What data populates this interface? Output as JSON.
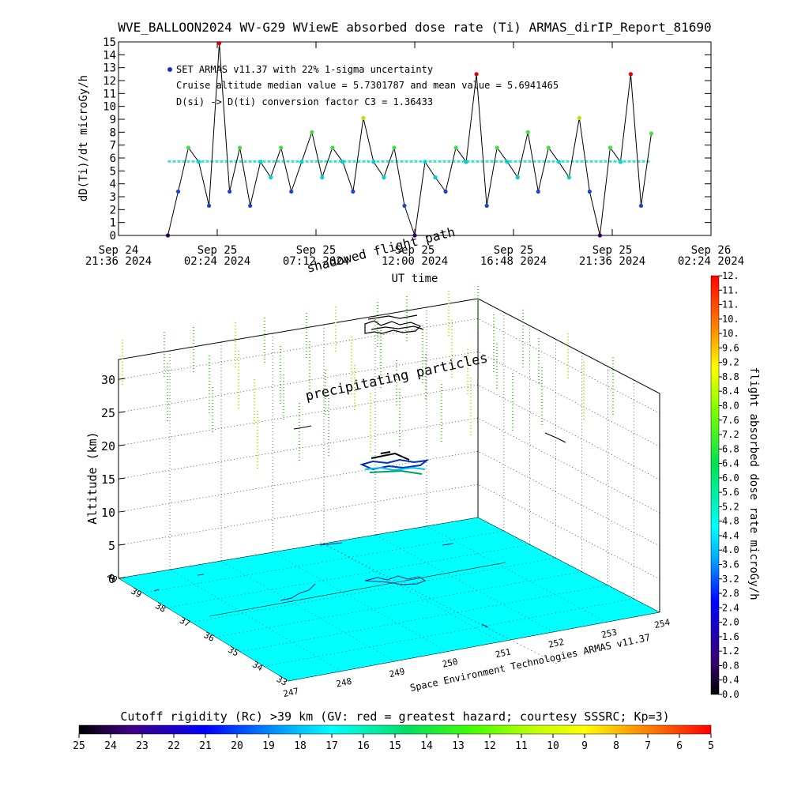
{
  "title": "WVE_BALLOON2024 WV-G29 WViewE absorbed dose rate (Ti) ARMAS_dirIP_Report_81690",
  "credit": "Space Environment Technologies ARMAS v11.37",
  "annotations": {
    "shadowed_flight_path": "shadowed flight path",
    "precipitating_particles": "precipitating particles"
  },
  "top_chart": {
    "ylabel": "dD(Ti)/dt microGy/h",
    "xlabel": "UT time",
    "legend": {
      "line1": "SET ARMAS v11.37 with 22% 1-sigma uncertainty",
      "line2": "Cruise altitude median value = 5.7301787 and mean value = 5.6941465",
      "line3": "D(si) -> D(ti) conversion factor C3 = 1.36433"
    },
    "yticks": [
      "0",
      "1",
      "2",
      "3",
      "4",
      "5",
      "6",
      "7",
      "8",
      "9",
      "10",
      "11",
      "12",
      "13",
      "14",
      "15"
    ],
    "xticks": [
      {
        "top": "Sep 24",
        "bottom": "21:36 2024"
      },
      {
        "top": "Sep 25",
        "bottom": "02:24 2024"
      },
      {
        "top": "Sep 25",
        "bottom": "07:12 2024"
      },
      {
        "top": "Sep 25",
        "bottom": "12:00 2024"
      },
      {
        "top": "Sep 25",
        "bottom": "16:48 2024"
      },
      {
        "top": "Sep 25",
        "bottom": "21:36 2024"
      },
      {
        "top": "Sep 26",
        "bottom": "02:24 2024"
      }
    ]
  },
  "chart_data": [
    {
      "type": "line",
      "title": "WVE_BALLOON2024 WV-G29 WViewE absorbed dose rate (Ti) ARMAS_dirIP_Report_81690",
      "xlabel": "UT time",
      "ylabel": "dD(Ti)/dt microGy/h",
      "xlim": [
        "2024-09-24 21:36",
        "2024-09-26 02:24"
      ],
      "ylim": [
        0,
        15
      ],
      "series": [
        {
          "name": "SET ARMAS v11.37 with 22% 1-sigma uncertainty",
          "x": [
            "2024-09-25 00:00",
            "2024-09-25 00:30",
            "2024-09-25 01:00",
            "2024-09-25 01:30",
            "2024-09-25 02:00",
            "2024-09-25 02:30",
            "2024-09-25 03:00",
            "2024-09-25 03:30",
            "2024-09-25 04:00",
            "2024-09-25 04:30",
            "2024-09-25 05:00",
            "2024-09-25 05:30",
            "2024-09-25 06:00",
            "2024-09-25 06:30",
            "2024-09-25 07:00",
            "2024-09-25 07:30",
            "2024-09-25 08:00",
            "2024-09-25 08:30",
            "2024-09-25 09:00",
            "2024-09-25 09:30",
            "2024-09-25 10:00",
            "2024-09-25 10:30",
            "2024-09-25 11:00",
            "2024-09-25 11:30",
            "2024-09-25 12:00",
            "2024-09-25 12:30",
            "2024-09-25 13:00",
            "2024-09-25 13:30",
            "2024-09-25 14:00",
            "2024-09-25 14:30",
            "2024-09-25 15:00",
            "2024-09-25 15:30",
            "2024-09-25 16:00",
            "2024-09-25 16:30",
            "2024-09-25 17:00",
            "2024-09-25 17:30",
            "2024-09-25 18:00",
            "2024-09-25 18:30",
            "2024-09-25 19:00",
            "2024-09-25 19:30",
            "2024-09-25 20:00",
            "2024-09-25 20:30",
            "2024-09-25 21:00",
            "2024-09-25 21:30",
            "2024-09-25 22:00",
            "2024-09-25 22:30",
            "2024-09-25 23:00",
            "2024-09-25 23:30"
          ],
          "values": [
            0,
            3.4,
            6.8,
            5.7,
            2.3,
            14.9,
            3.4,
            6.8,
            2.3,
            5.7,
            4.5,
            6.8,
            3.4,
            5.7,
            8.0,
            4.5,
            6.8,
            5.7,
            3.4,
            9.1,
            5.7,
            4.5,
            6.8,
            2.3,
            0,
            5.7,
            4.5,
            3.4,
            6.8,
            5.7,
            12.5,
            2.3,
            6.8,
            5.7,
            4.5,
            8.0,
            3.4,
            6.8,
            5.7,
            4.5,
            9.1,
            3.4,
            0,
            6.8,
            5.7,
            12.5,
            2.3,
            7.9
          ]
        },
        {
          "name": "Cruise altitude median value = 5.7301787 and mean value = 5.6941465",
          "values": [
            5.73
          ]
        }
      ]
    },
    {
      "type": "scatter",
      "xlabel": "",
      "ylabel": "Altitude (km)",
      "zlim": [
        0,
        33
      ],
      "longitude_ticks": [
        "247",
        "248",
        "249",
        "250",
        "251",
        "252",
        "253",
        "254"
      ],
      "latitude_ticks": [
        "33",
        "34",
        "35",
        "36",
        "37",
        "38",
        "39",
        "40"
      ],
      "altitude_ticks": [
        "0",
        "5",
        "10",
        "15",
        "20",
        "25",
        "30"
      ]
    }
  ],
  "dose_colorbar": {
    "label": "flight absorbed dose rate microGy/h",
    "ticks": [
      "0.0",
      "0.4",
      "0.8",
      "1.2",
      "1.6",
      "2.0",
      "2.4",
      "2.8",
      "3.2",
      "3.6",
      "4.0",
      "4.4",
      "4.8",
      "5.2",
      "5.6",
      "6.0",
      "6.4",
      "6.8",
      "7.2",
      "7.6",
      "8.0",
      "8.4",
      "8.8",
      "9.2",
      "9.6",
      "10.",
      "10.",
      "11.",
      "11.",
      "12."
    ]
  },
  "rigidity_colorbar": {
    "label": "Cutoff rigidity (Rc) >39 km (GV: red = greatest hazard; courtesy SSSRC; Kp=3)",
    "ticks": [
      "25",
      "24",
      "23",
      "22",
      "21",
      "20",
      "19",
      "18",
      "17",
      "16",
      "15",
      "14",
      "13",
      "12",
      "11",
      "10",
      "9",
      "8",
      "7",
      "6",
      "5"
    ]
  },
  "colors": {
    "surface": "#00ffff",
    "median_line": "#40e0d0",
    "trace": "#000000"
  }
}
